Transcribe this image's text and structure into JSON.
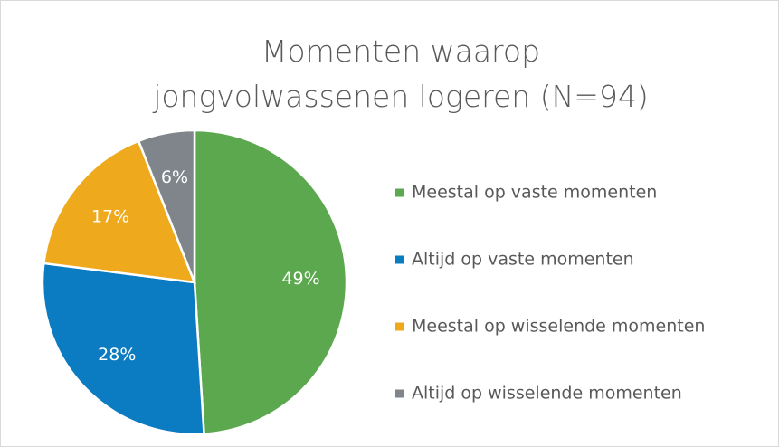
{
  "chart_data": {
    "type": "pie",
    "title": "Momenten waarop jongvolwassenen logeren (N=94)",
    "categories": [
      "Meestal op vaste momenten",
      "Altijd op vaste momenten",
      "Meestal op wisselende momenten",
      "Altijd op wisselende momenten"
    ],
    "values": [
      49,
      28,
      17,
      6
    ],
    "value_labels": [
      "49%",
      "28%",
      "17%",
      "6%"
    ],
    "colors": [
      "#5ba84f",
      "#0b7bc2",
      "#eea91c",
      "#7f858a"
    ],
    "legend": "right"
  }
}
